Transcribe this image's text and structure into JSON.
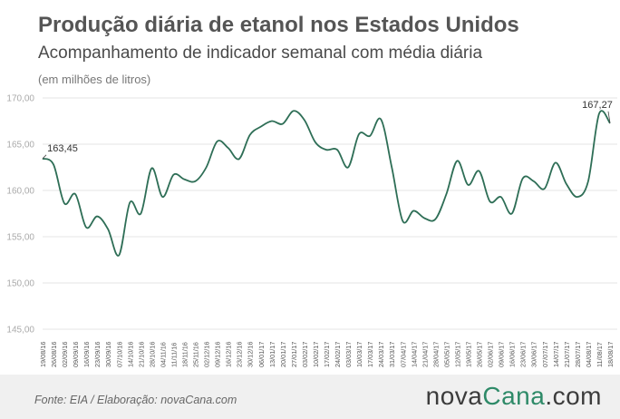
{
  "header": {
    "title": "Produção diária de etanol nos Estados Unidos",
    "subtitle": "Acompanhamento de indicador semanal com média diária",
    "unit": "(em milhões de litros)"
  },
  "footer": {
    "source": "Fonte:  EIA / Elaboração:  novaCana.com",
    "logo_part1": "nova",
    "logo_part2": "Cana",
    "logo_part3": ".com"
  },
  "colors": {
    "line": "#2e6e56",
    "grid": "#e6e6e6",
    "axis_text": "#aaaaaa",
    "logo_accent": "#2e8a68"
  },
  "chart_data": {
    "type": "line",
    "title": "Produção diária de etanol nos Estados Unidos",
    "subtitle": "Acompanhamento de indicador semanal com média diária",
    "ylabel": "(em milhões de litros)",
    "ylim": [
      145,
      170
    ],
    "yticks": [
      "145,00",
      "150,00",
      "155,00",
      "160,00",
      "165,00",
      "170,00"
    ],
    "ytick_values": [
      145,
      150,
      155,
      160,
      165,
      170
    ],
    "grid": "horizontal",
    "xtick_labels": [
      "19/08/16",
      "26/08/16",
      "02/09/16",
      "09/09/16",
      "16/09/16",
      "23/09/16",
      "30/09/16",
      "07/10/16",
      "14/10/16",
      "21/10/16",
      "28/10/16",
      "04/11/16",
      "11/11/16",
      "18/11/16",
      "25/11/16",
      "02/12/16",
      "09/12/16",
      "16/12/16",
      "23/12/16",
      "30/12/16",
      "06/01/17",
      "13/01/17",
      "20/01/17",
      "27/01/17",
      "03/02/17",
      "10/02/17",
      "17/02/17",
      "24/02/17",
      "03/03/17",
      "10/03/17",
      "17/03/17",
      "24/03/17",
      "31/03/17",
      "07/04/17",
      "14/04/17",
      "21/04/17",
      "28/04/17",
      "05/05/17",
      "12/05/17",
      "19/05/17",
      "26/05/17",
      "02/06/17",
      "09/06/17",
      "16/06/17",
      "23/06/17",
      "30/06/17",
      "07/07/17",
      "14/07/17",
      "21/07/17",
      "28/07/17",
      "04/08/17",
      "11/08/17",
      "18/08/17"
    ],
    "values": [
      163.45,
      162.8,
      158.6,
      159.6,
      156.0,
      157.2,
      155.8,
      153.0,
      158.7,
      157.5,
      162.4,
      159.3,
      161.7,
      161.2,
      161.0,
      162.5,
      165.3,
      164.6,
      163.4,
      166.0,
      166.9,
      167.5,
      167.2,
      168.6,
      167.6,
      165.2,
      164.4,
      164.4,
      162.5,
      166.1,
      165.9,
      167.7,
      162.5,
      156.7,
      157.8,
      157.0,
      156.9,
      159.6,
      163.2,
      160.6,
      162.1,
      158.8,
      159.3,
      157.5,
      161.3,
      161.0,
      160.2,
      163.0,
      160.7,
      159.3,
      161.0,
      168.3,
      167.27
    ],
    "annotations": [
      {
        "label": "163,45",
        "point_index": 0
      },
      {
        "label": "167,27",
        "point_index": 52
      }
    ]
  }
}
